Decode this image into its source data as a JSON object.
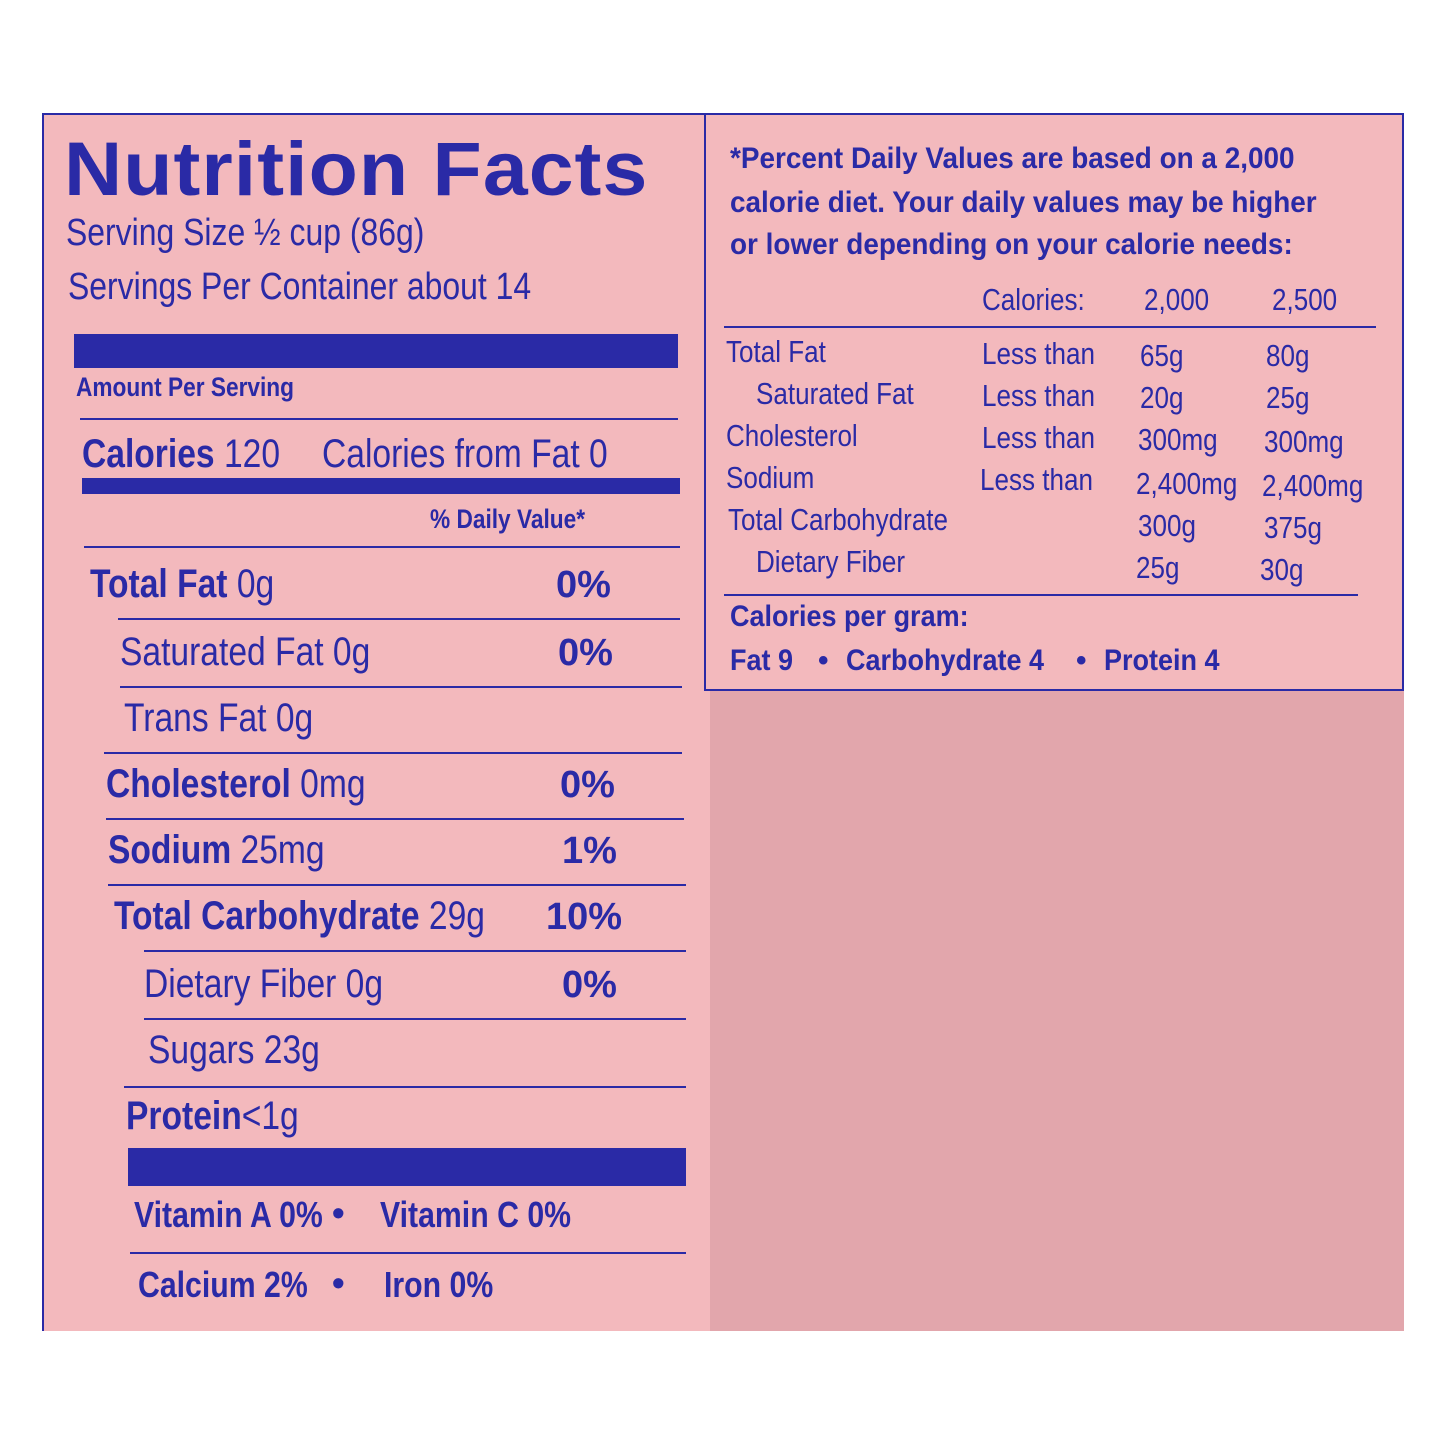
{
  "title": "Nutrition Facts",
  "serving_size": "Serving Size ½ cup (86g)",
  "servings_per_container": "Servings Per Container about 14",
  "amount_per_serving": "Amount Per Serving",
  "calories_label": "Calories",
  "calories_value": "120",
  "calories_from_fat": "Calories from Fat 0",
  "daily_value_header": "% Daily Value*",
  "nutrients": [
    {
      "label": "Total Fat",
      "amount": "0g",
      "pct": "0%"
    },
    {
      "label": "Saturated Fat 0g",
      "amount": "",
      "pct": "0%"
    },
    {
      "label": "Trans Fat 0g",
      "amount": "",
      "pct": ""
    },
    {
      "label": "Cholesterol",
      "amount": "0mg",
      "pct": "0%"
    },
    {
      "label": "Sodium",
      "amount": "25mg",
      "pct": "1%"
    },
    {
      "label": "Total Carbohydrate",
      "amount": "29g",
      "pct": "10%"
    },
    {
      "label": "Dietary Fiber 0g",
      "amount": "",
      "pct": "0%"
    },
    {
      "label": "Sugars 23g",
      "amount": "",
      "pct": ""
    },
    {
      "label": "Protein",
      "amount": "<1g",
      "pct": ""
    }
  ],
  "vitamins": {
    "vitamin_a": "Vitamin A 0%",
    "vitamin_c": "Vitamin C 0%",
    "calcium": "Calcium 2%",
    "iron": "Iron 0%",
    "bullet": "•"
  },
  "footnote": {
    "line1": "*Percent Daily Values are based on a 2,000",
    "line2": "calorie diet. Your daily values may be higher",
    "line3": "or lower depending on your calorie needs:",
    "calories_label": "Calories:",
    "col1": "2,000",
    "col2": "2,500",
    "rows": [
      {
        "name": "Total Fat",
        "cond": "Less than",
        "v1": "65g",
        "v2": "80g"
      },
      {
        "name": "Saturated Fat",
        "cond": "Less than",
        "v1": "20g",
        "v2": "25g"
      },
      {
        "name": "Cholesterol",
        "cond": "Less than",
        "v1": "300mg",
        "v2": "300mg"
      },
      {
        "name": "Sodium",
        "cond": "Less than",
        "v1": "2,400mg",
        "v2": "2,400mg"
      },
      {
        "name": "Total Carbohydrate",
        "cond": "",
        "v1": "300g",
        "v2": "375g"
      },
      {
        "name": "Dietary Fiber",
        "cond": "",
        "v1": "25g",
        "v2": "30g"
      }
    ],
    "cal_per_gram": "Calories per gram:",
    "fat": "Fat 9",
    "carb": "Carbohydrate 4",
    "protein": "Protein 4",
    "bullet": "•"
  },
  "colors": {
    "ink": "#2a2aa6",
    "panel": "#f3b9bd",
    "package": "#e2a6ac"
  }
}
